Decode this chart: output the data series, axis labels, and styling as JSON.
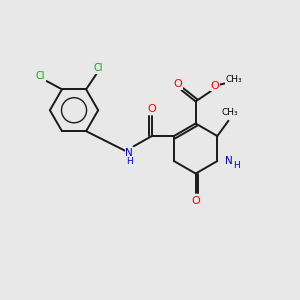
{
  "bg_color": "#e8e8e8",
  "atom_colors": {
    "C": "#000000",
    "N": "#0000cd",
    "O": "#ff0000",
    "Cl": "#00aa00",
    "H": "#000000"
  },
  "bond_color": "#1a1a1a",
  "bond_lw": 1.4,
  "figsize": [
    3.0,
    3.0
  ],
  "dpi": 100
}
